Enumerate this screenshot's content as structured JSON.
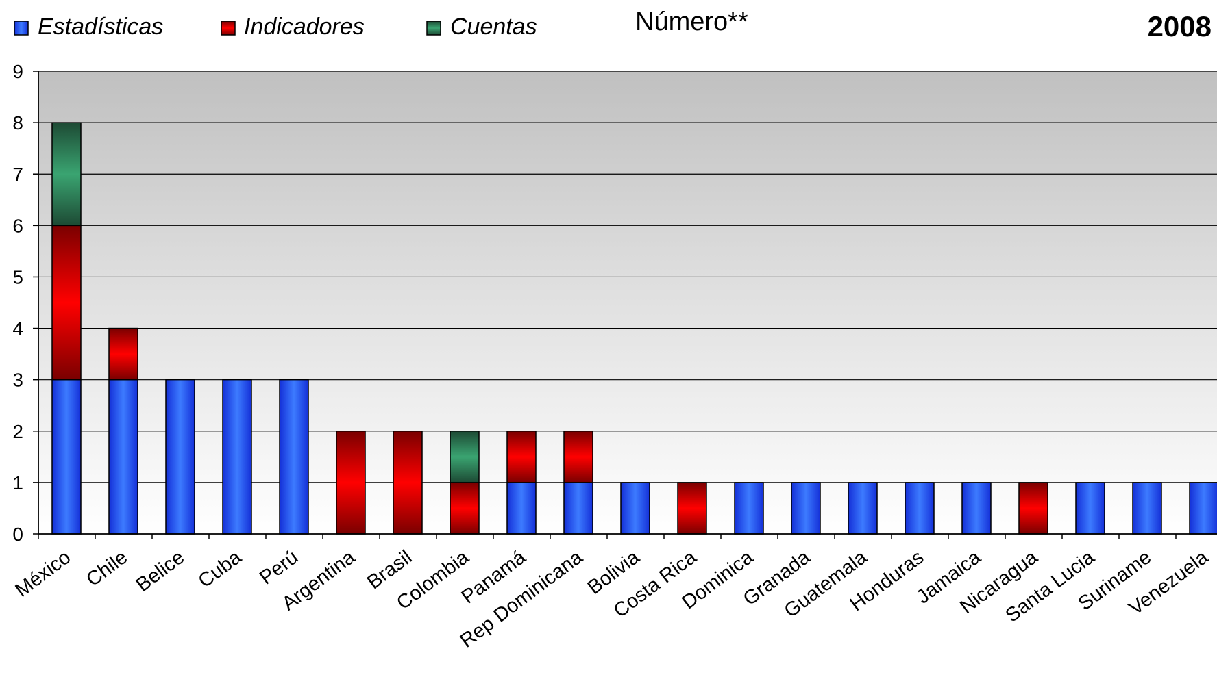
{
  "chart_data": {
    "type": "bar",
    "stacked": true,
    "title": "Número**",
    "year_label": "2008",
    "ylim": [
      0,
      9
    ],
    "yticks": [
      "0",
      "1",
      "2",
      "3",
      "4",
      "5",
      "6",
      "7",
      "8",
      "9"
    ],
    "grid": true,
    "legend_position": "top-left",
    "categories": [
      "México",
      "Chile",
      "Belice",
      "Cuba",
      "Perú",
      "Argentina",
      "Brasil",
      "Colombia",
      "Panamá",
      "Rep Dominicana",
      "Bolivia",
      "Costa Rica",
      "Dominica",
      "Granada",
      "Guatemala",
      "Honduras",
      "Jamaica",
      "Nicaragua",
      "Santa Lucia",
      "Suriname",
      "Venezuela"
    ],
    "series": [
      {
        "name": "Estadísticas",
        "color": "#1a3cff",
        "values": [
          3,
          3,
          3,
          3,
          3,
          0,
          0,
          0,
          1,
          1,
          1,
          0,
          1,
          1,
          1,
          1,
          1,
          0,
          1,
          1,
          1
        ]
      },
      {
        "name": "Indicadores",
        "color": "#ff0000",
        "values": [
          3,
          1,
          0,
          0,
          0,
          2,
          2,
          1,
          1,
          1,
          0,
          1,
          0,
          0,
          0,
          0,
          0,
          1,
          0,
          0,
          0
        ]
      },
      {
        "name": "Cuentas",
        "color": "#2e8b57",
        "values": [
          2,
          0,
          0,
          0,
          0,
          0,
          0,
          1,
          0,
          0,
          0,
          0,
          0,
          0,
          0,
          0,
          0,
          0,
          0,
          0,
          0
        ]
      }
    ]
  }
}
